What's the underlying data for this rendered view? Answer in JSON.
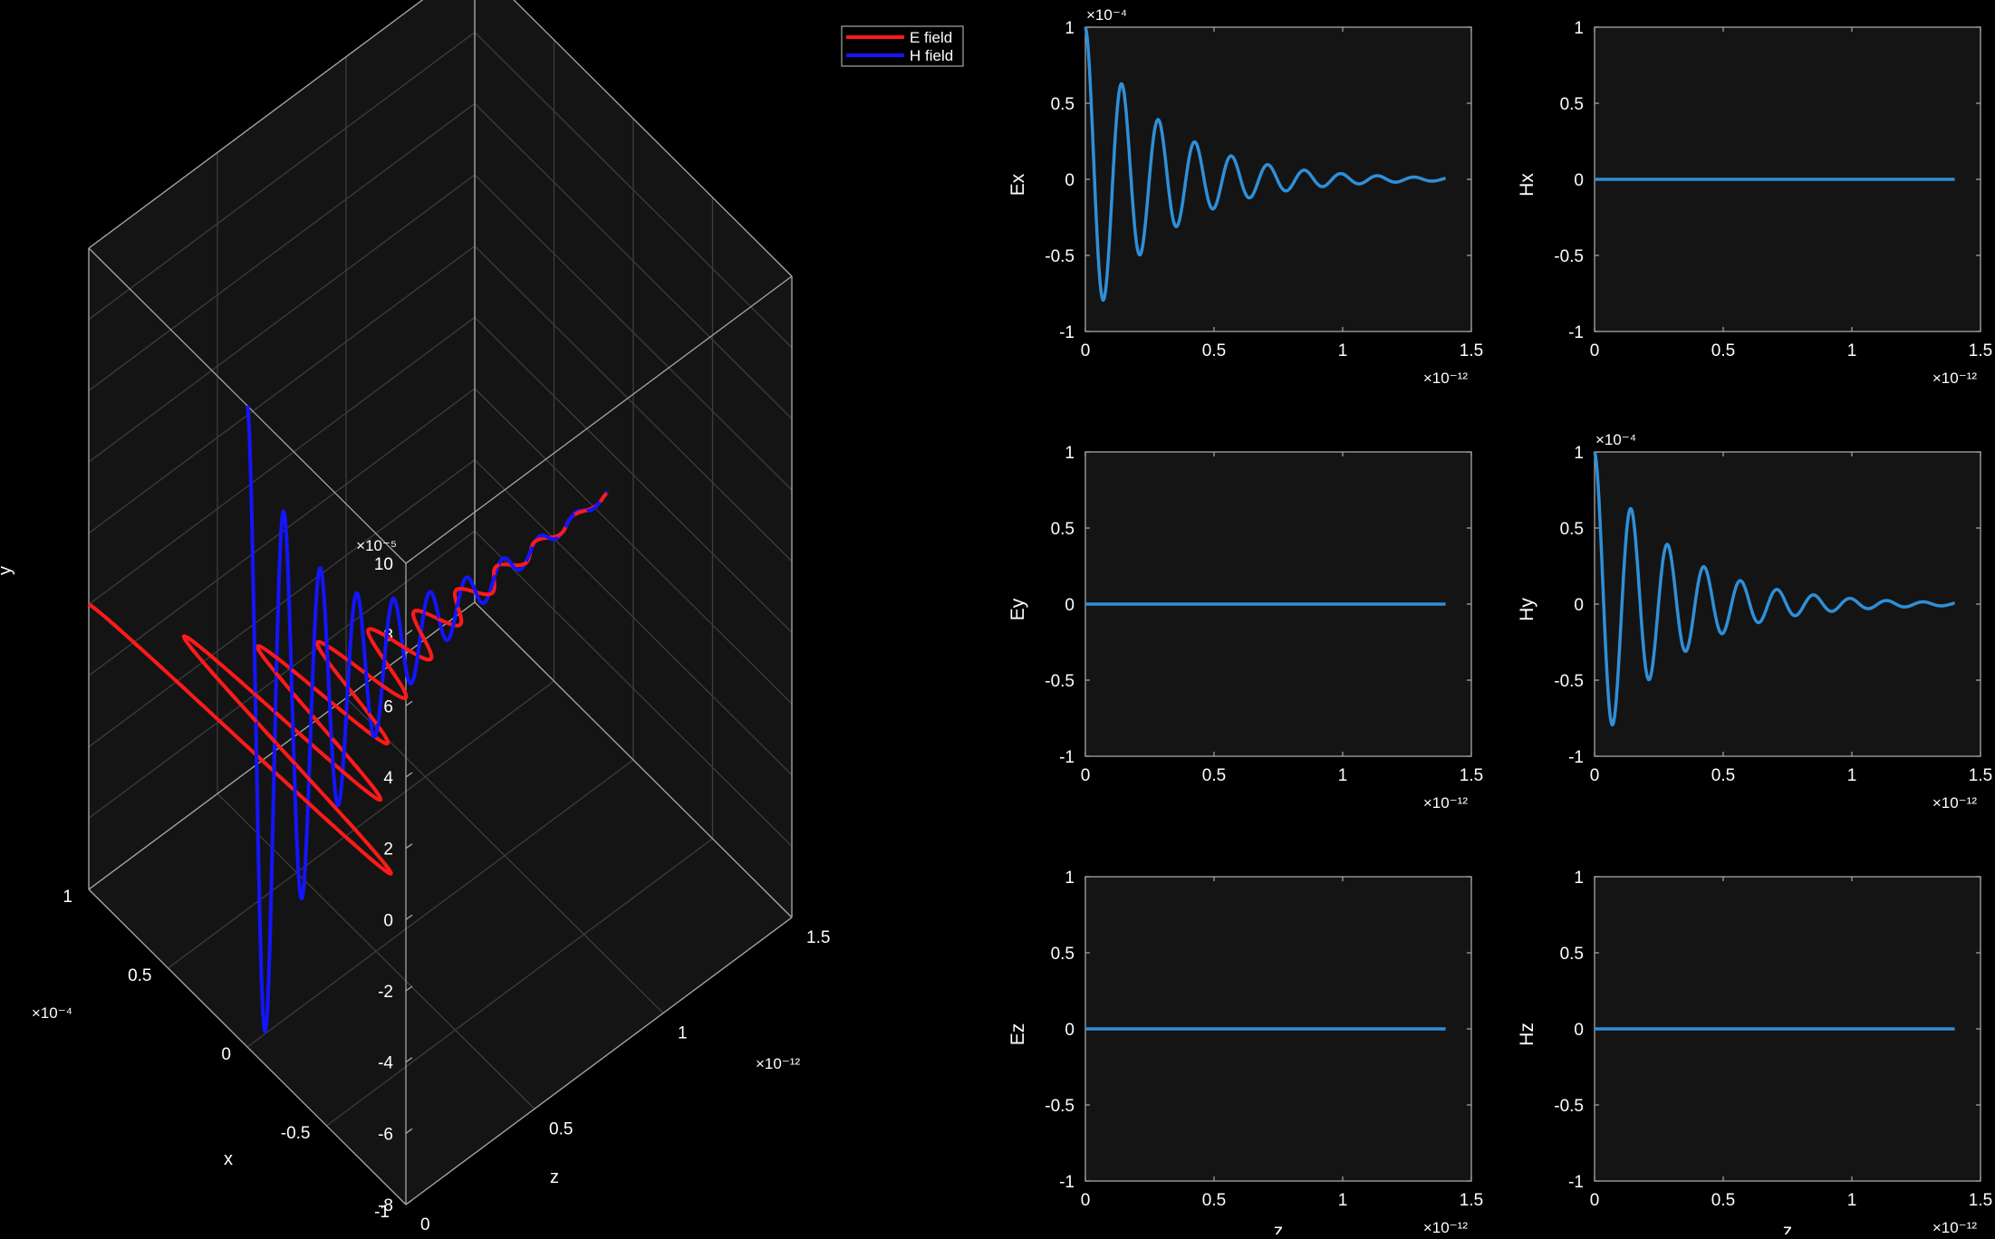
{
  "colors": {
    "background": "#000000",
    "axes_bg": "#141414",
    "grid": "#3d3d3d",
    "frame": "#a6a6a6",
    "e_field": "#ff1a1a",
    "h_field": "#1414ff",
    "trace": "#2f8fd8"
  },
  "plot3d": {
    "type": "line3d",
    "xlabel": "x",
    "ylabel": "y",
    "zlabel": "z",
    "x_ticks": [
      "-1",
      "-0.5",
      "0",
      "0.5",
      "1"
    ],
    "x_exponent": "×10⁻⁴",
    "y_ticks": [
      "-8",
      "-6",
      "-4",
      "-2",
      "0",
      "2",
      "4",
      "6",
      "8",
      "10"
    ],
    "y_exponent": "×10⁻⁵",
    "z_ticks": [
      "0",
      "0.5",
      "1",
      "1.5"
    ],
    "z_exponent": "×10⁻¹²",
    "legend": {
      "position": "top-right",
      "entries": [
        "E field",
        "H field"
      ]
    },
    "series": [
      {
        "name": "E field",
        "amplitude_x": 0.0001,
        "decay_per_s": 3300000000000.0,
        "wavelength_s": 1.42e-13,
        "z_range": [
          0,
          1.4e-12
        ]
      },
      {
        "name": "H field",
        "amplitude_y": 0.0001,
        "decay_per_s": 3300000000000.0,
        "wavelength_s": 1.42e-13,
        "z_range": [
          0,
          1.4e-12
        ]
      }
    ]
  },
  "chart_data": [
    {
      "type": "line",
      "ylabel": "Ex",
      "xlabel": "",
      "xlim": [
        0,
        1.5
      ],
      "ylim": [
        -1,
        1
      ],
      "x_ticks": [
        "0",
        "0.5",
        "1",
        "1.5"
      ],
      "y_ticks": [
        "-1",
        "-0.5",
        "0",
        "0.5",
        "1"
      ],
      "x_exponent": "×10⁻¹²",
      "y_exponent": "×10⁻⁴",
      "form": "damped",
      "amplitude": 1,
      "decay": 3.3,
      "wavelength": 0.142,
      "x_max": 1.4
    },
    {
      "type": "line",
      "ylabel": "Hx",
      "xlabel": "",
      "xlim": [
        0,
        1.5
      ],
      "ylim": [
        -1,
        1
      ],
      "x_ticks": [
        "0",
        "0.5",
        "1",
        "1.5"
      ],
      "y_ticks": [
        "-1",
        "-0.5",
        "0",
        "0.5",
        "1"
      ],
      "x_exponent": "×10⁻¹²",
      "y_exponent": "",
      "form": "zero",
      "x_max": 1.4
    },
    {
      "type": "line",
      "ylabel": "Ey",
      "xlabel": "",
      "xlim": [
        0,
        1.5
      ],
      "ylim": [
        -1,
        1
      ],
      "x_ticks": [
        "0",
        "0.5",
        "1",
        "1.5"
      ],
      "y_ticks": [
        "-1",
        "-0.5",
        "0",
        "0.5",
        "1"
      ],
      "x_exponent": "×10⁻¹²",
      "y_exponent": "",
      "form": "zero",
      "x_max": 1.4
    },
    {
      "type": "line",
      "ylabel": "Hy",
      "xlabel": "",
      "xlim": [
        0,
        1.5
      ],
      "ylim": [
        -1,
        1
      ],
      "x_ticks": [
        "0",
        "0.5",
        "1",
        "1.5"
      ],
      "y_ticks": [
        "-1",
        "-0.5",
        "0",
        "0.5",
        "1"
      ],
      "x_exponent": "×10⁻¹²",
      "y_exponent": "×10⁻⁴",
      "form": "damped",
      "amplitude": 1,
      "decay": 3.3,
      "wavelength": 0.142,
      "x_max": 1.4
    },
    {
      "type": "line",
      "ylabel": "Ez",
      "xlabel": "z",
      "xlim": [
        0,
        1.5
      ],
      "ylim": [
        -1,
        1
      ],
      "x_ticks": [
        "0",
        "0.5",
        "1",
        "1.5"
      ],
      "y_ticks": [
        "-1",
        "-0.5",
        "0",
        "0.5",
        "1"
      ],
      "x_exponent": "×10⁻¹²",
      "y_exponent": "",
      "form": "zero",
      "x_max": 1.4
    },
    {
      "type": "line",
      "ylabel": "Hz",
      "xlabel": "z",
      "xlim": [
        0,
        1.5
      ],
      "ylim": [
        -1,
        1
      ],
      "x_ticks": [
        "0",
        "0.5",
        "1",
        "1.5"
      ],
      "y_ticks": [
        "-1",
        "-0.5",
        "0",
        "0.5",
        "1"
      ],
      "x_exponent": "×10⁻¹²",
      "y_exponent": "",
      "form": "zero",
      "x_max": 1.4
    }
  ]
}
